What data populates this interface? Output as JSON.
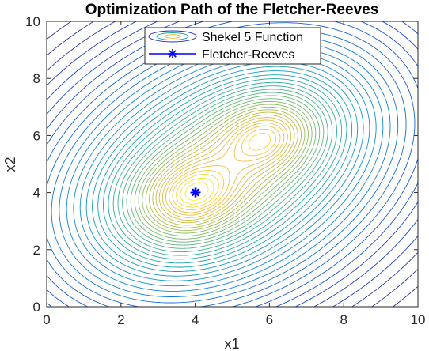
{
  "chart_data": {
    "type": "contour",
    "title": "Optimization Path of the Fletcher-Reeves",
    "xlabel": "x1",
    "ylabel": "x2",
    "xlim": [
      0,
      10
    ],
    "ylim": [
      0,
      10
    ],
    "xticks": [
      "0",
      "2",
      "4",
      "6",
      "8",
      "10"
    ],
    "yticks": [
      "0",
      "2",
      "4",
      "6",
      "8",
      "10"
    ],
    "legend": {
      "position": "top-center",
      "entries": [
        "Shekel 5 Function",
        "Fletcher-Reeves"
      ]
    },
    "contour": {
      "name": "Shekel 5 Function",
      "colormap": "parula",
      "minima": [
        {
          "x": 4.0,
          "y": 4.0,
          "depth": 1.0
        },
        {
          "x": 5.8,
          "y": 5.85,
          "depth": 0.78
        }
      ],
      "levels": 40
    },
    "series": [
      {
        "name": "Fletcher-Reeves",
        "color": "#0000ff",
        "marker": "asterisk",
        "x": [
          4.0,
          4.02,
          4.0
        ],
        "y": [
          4.0,
          4.01,
          4.0
        ]
      }
    ]
  }
}
